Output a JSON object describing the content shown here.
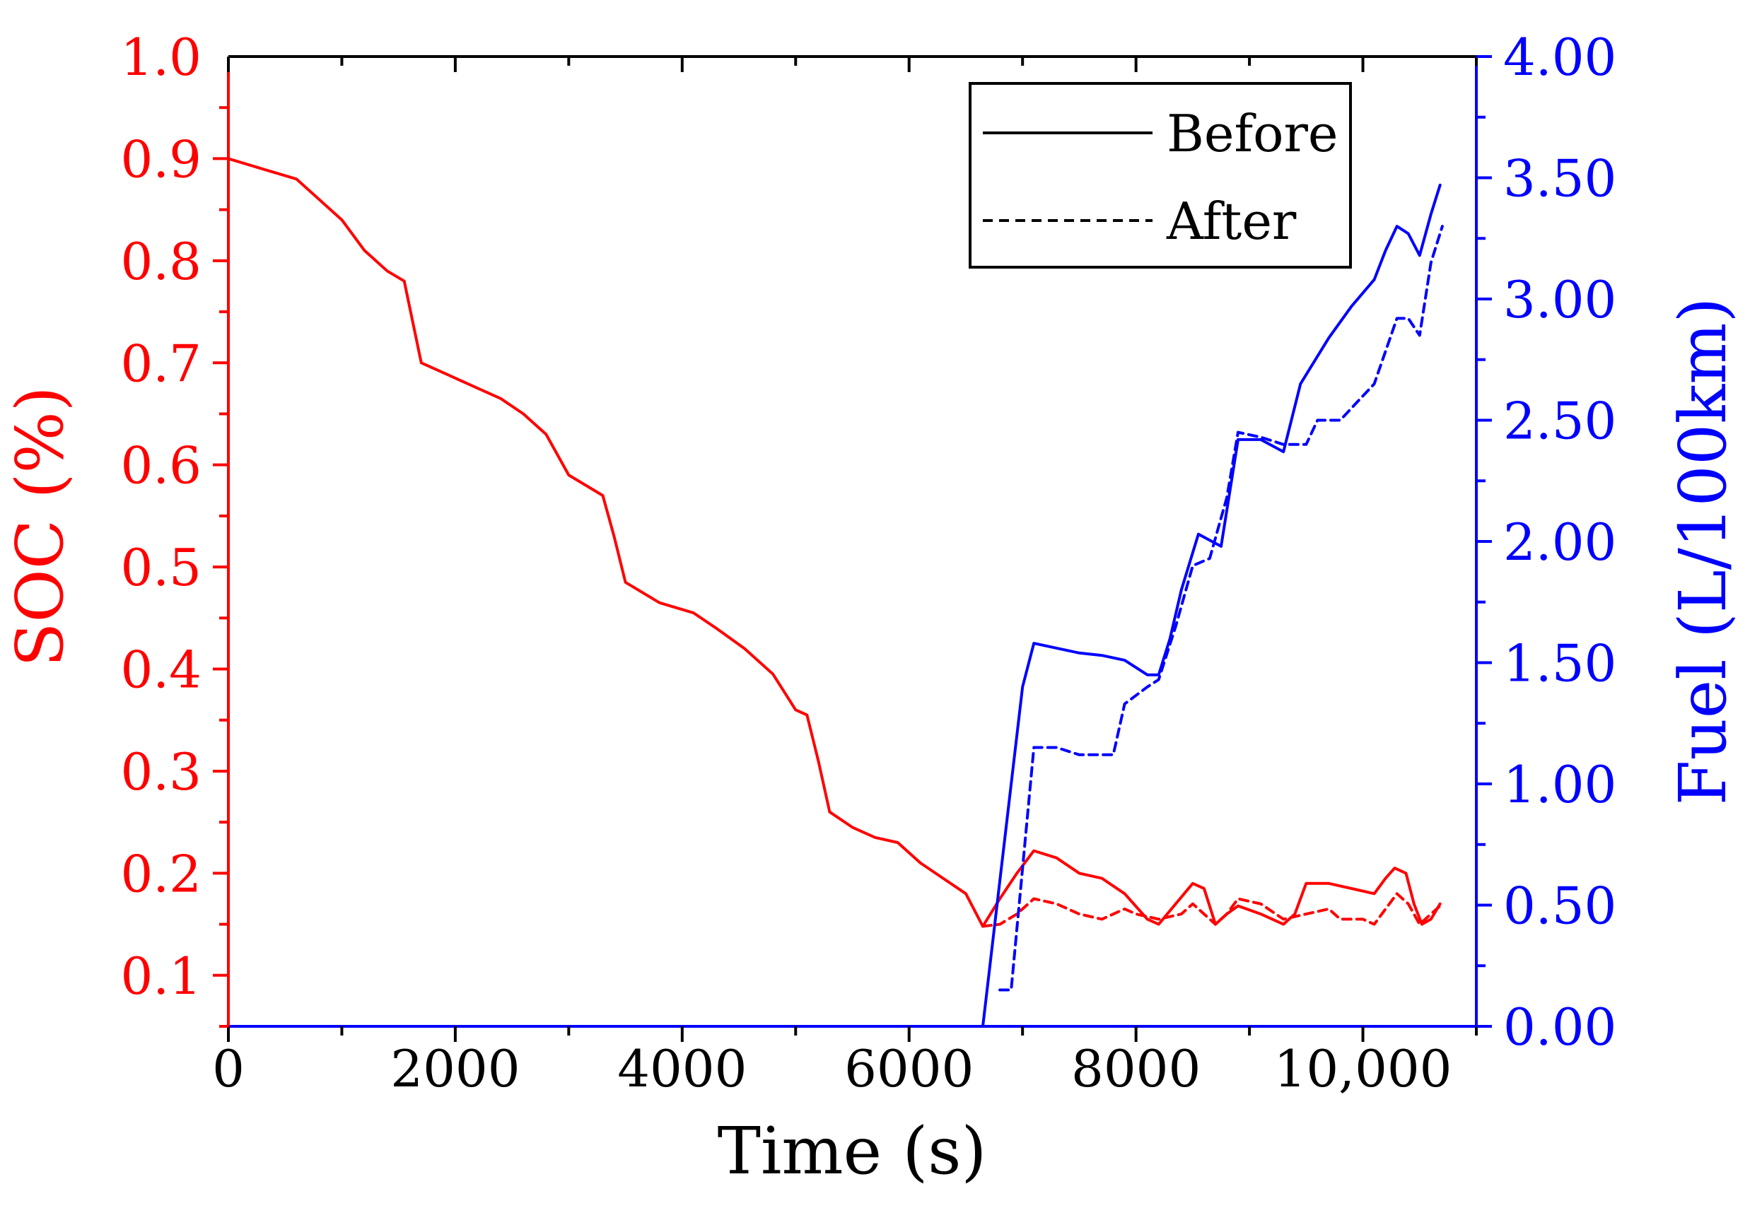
{
  "colors": {
    "soc": "#ff0000",
    "fuel": "#0000ff",
    "axis": "#000000",
    "background": "#ffffff"
  },
  "chart_data": {
    "type": "line",
    "title": "",
    "xlabel": "Time (s)",
    "ylabel_left": "SOC (%)",
    "ylabel_right": "Fuel (L/100km)",
    "xlim": [
      0,
      11000
    ],
    "ylim_left": [
      0.05,
      1.0
    ],
    "ylim_right": [
      0.0,
      4.0
    ],
    "x_ticks": [
      {
        "value": 0,
        "label": "0"
      },
      {
        "value": 2000,
        "label": "2000"
      },
      {
        "value": 4000,
        "label": "4000"
      },
      {
        "value": 6000,
        "label": "6000"
      },
      {
        "value": 8000,
        "label": "8000"
      },
      {
        "value": 10000,
        "label": "10,000"
      }
    ],
    "y_left_ticks": [
      {
        "value": 0.1,
        "label": "0.1"
      },
      {
        "value": 0.2,
        "label": "0.2"
      },
      {
        "value": 0.3,
        "label": "0.3"
      },
      {
        "value": 0.4,
        "label": "0.4"
      },
      {
        "value": 0.5,
        "label": "0.5"
      },
      {
        "value": 0.6,
        "label": "0.6"
      },
      {
        "value": 0.7,
        "label": "0.7"
      },
      {
        "value": 0.8,
        "label": "0.8"
      },
      {
        "value": 0.9,
        "label": "0.9"
      },
      {
        "value": 1.0,
        "label": "1.0"
      }
    ],
    "y_right_ticks": [
      {
        "value": 0.0,
        "label": "0.00"
      },
      {
        "value": 0.5,
        "label": "0.50"
      },
      {
        "value": 1.0,
        "label": "1.00"
      },
      {
        "value": 1.5,
        "label": "1.50"
      },
      {
        "value": 2.0,
        "label": "2.00"
      },
      {
        "value": 2.5,
        "label": "2.50"
      },
      {
        "value": 3.0,
        "label": "3.00"
      },
      {
        "value": 3.5,
        "label": "3.50"
      },
      {
        "value": 4.0,
        "label": "4.00"
      }
    ],
    "legend": {
      "position": "top-right",
      "entries": [
        {
          "label": "Before",
          "style": "solid"
        },
        {
          "label": "After",
          "style": "dashed"
        }
      ]
    },
    "series": [
      {
        "name": "SOC Before",
        "axis": "left",
        "style": "solid",
        "points": [
          [
            0,
            0.9
          ],
          [
            300,
            0.89
          ],
          [
            600,
            0.88
          ],
          [
            800,
            0.86
          ],
          [
            1000,
            0.84
          ],
          [
            1200,
            0.81
          ],
          [
            1400,
            0.79
          ],
          [
            1550,
            0.78
          ],
          [
            1700,
            0.7
          ],
          [
            1900,
            0.69
          ],
          [
            2200,
            0.675
          ],
          [
            2400,
            0.665
          ],
          [
            2600,
            0.65
          ],
          [
            2800,
            0.63
          ],
          [
            3000,
            0.59
          ],
          [
            3300,
            0.57
          ],
          [
            3400,
            0.53
          ],
          [
            3500,
            0.485
          ],
          [
            3800,
            0.465
          ],
          [
            4100,
            0.455
          ],
          [
            4300,
            0.44
          ],
          [
            4550,
            0.42
          ],
          [
            4800,
            0.395
          ],
          [
            5000,
            0.36
          ],
          [
            5100,
            0.355
          ],
          [
            5200,
            0.31
          ],
          [
            5300,
            0.26
          ],
          [
            5500,
            0.245
          ],
          [
            5700,
            0.235
          ],
          [
            5900,
            0.23
          ],
          [
            6100,
            0.21
          ],
          [
            6300,
            0.195
          ],
          [
            6500,
            0.18
          ],
          [
            6650,
            0.148
          ],
          [
            6800,
            0.175
          ],
          [
            6950,
            0.2
          ],
          [
            7100,
            0.222
          ],
          [
            7300,
            0.215
          ],
          [
            7500,
            0.2
          ],
          [
            7700,
            0.195
          ],
          [
            7900,
            0.18
          ],
          [
            8100,
            0.155
          ],
          [
            8200,
            0.15
          ],
          [
            8350,
            0.17
          ],
          [
            8500,
            0.19
          ],
          [
            8600,
            0.185
          ],
          [
            8700,
            0.15
          ],
          [
            8800,
            0.16
          ],
          [
            8900,
            0.168
          ],
          [
            9100,
            0.16
          ],
          [
            9300,
            0.15
          ],
          [
            9400,
            0.16
          ],
          [
            9500,
            0.19
          ],
          [
            9700,
            0.19
          ],
          [
            9900,
            0.185
          ],
          [
            10100,
            0.18
          ],
          [
            10200,
            0.195
          ],
          [
            10280,
            0.205
          ],
          [
            10380,
            0.2
          ],
          [
            10450,
            0.17
          ],
          [
            10520,
            0.15
          ],
          [
            10600,
            0.155
          ],
          [
            10680,
            0.17
          ]
        ]
      },
      {
        "name": "SOC After",
        "axis": "left",
        "style": "dashed",
        "points": [
          [
            6650,
            0.148
          ],
          [
            6800,
            0.15
          ],
          [
            6950,
            0.16
          ],
          [
            7100,
            0.175
          ],
          [
            7300,
            0.17
          ],
          [
            7500,
            0.16
          ],
          [
            7700,
            0.155
          ],
          [
            7900,
            0.165
          ],
          [
            8000,
            0.16
          ],
          [
            8200,
            0.155
          ],
          [
            8400,
            0.16
          ],
          [
            8500,
            0.17
          ],
          [
            8600,
            0.16
          ],
          [
            8700,
            0.15
          ],
          [
            8800,
            0.16
          ],
          [
            8900,
            0.175
          ],
          [
            9100,
            0.17
          ],
          [
            9300,
            0.155
          ],
          [
            9500,
            0.16
          ],
          [
            9700,
            0.165
          ],
          [
            9800,
            0.155
          ],
          [
            10000,
            0.155
          ],
          [
            10100,
            0.15
          ],
          [
            10300,
            0.18
          ],
          [
            10400,
            0.17
          ],
          [
            10500,
            0.15
          ],
          [
            10600,
            0.16
          ],
          [
            10700,
            0.17
          ]
        ]
      },
      {
        "name": "Fuel Before",
        "axis": "right",
        "style": "solid",
        "points": [
          [
            6650,
            0.0
          ],
          [
            7000,
            1.4
          ],
          [
            7100,
            1.58
          ],
          [
            7300,
            1.56
          ],
          [
            7500,
            1.54
          ],
          [
            7700,
            1.53
          ],
          [
            7900,
            1.51
          ],
          [
            8100,
            1.45
          ],
          [
            8200,
            1.45
          ],
          [
            8300,
            1.6
          ],
          [
            8400,
            1.8
          ],
          [
            8550,
            2.03
          ],
          [
            8750,
            1.98
          ],
          [
            8900,
            2.42
          ],
          [
            9100,
            2.42
          ],
          [
            9300,
            2.37
          ],
          [
            9450,
            2.65
          ],
          [
            9700,
            2.84
          ],
          [
            9900,
            2.97
          ],
          [
            10100,
            3.08
          ],
          [
            10200,
            3.2
          ],
          [
            10300,
            3.3
          ],
          [
            10400,
            3.27
          ],
          [
            10500,
            3.18
          ],
          [
            10600,
            3.35
          ],
          [
            10680,
            3.47
          ]
        ]
      },
      {
        "name": "Fuel After",
        "axis": "right",
        "style": "dashed",
        "points": [
          [
            6800,
            0.15
          ],
          [
            6900,
            0.15
          ],
          [
            7100,
            1.15
          ],
          [
            7300,
            1.15
          ],
          [
            7500,
            1.12
          ],
          [
            7800,
            1.12
          ],
          [
            7900,
            1.33
          ],
          [
            8100,
            1.4
          ],
          [
            8200,
            1.43
          ],
          [
            8350,
            1.65
          ],
          [
            8500,
            1.9
          ],
          [
            8650,
            1.93
          ],
          [
            8800,
            2.18
          ],
          [
            8900,
            2.45
          ],
          [
            9100,
            2.43
          ],
          [
            9300,
            2.4
          ],
          [
            9500,
            2.4
          ],
          [
            9600,
            2.5
          ],
          [
            9800,
            2.5
          ],
          [
            10000,
            2.6
          ],
          [
            10100,
            2.65
          ],
          [
            10300,
            2.92
          ],
          [
            10400,
            2.92
          ],
          [
            10500,
            2.85
          ],
          [
            10600,
            3.15
          ],
          [
            10700,
            3.3
          ]
        ]
      }
    ]
  }
}
